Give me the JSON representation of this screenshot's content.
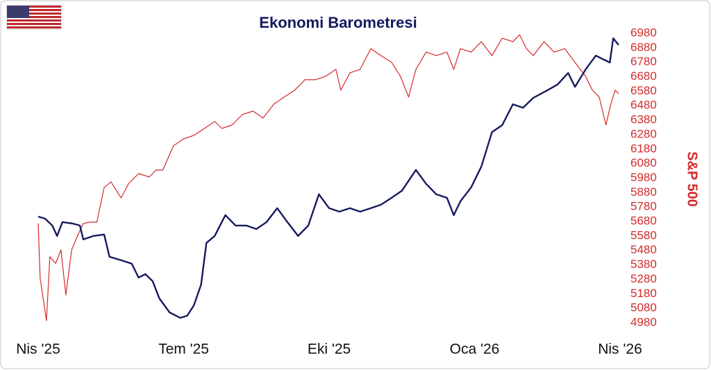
{
  "chart_data": {
    "type": "line",
    "title": "Ekonomi Barometresi",
    "y2label": "S&P 500",
    "xlim": [
      0,
      12
    ],
    "xticks": [
      {
        "value": 0,
        "label": "Nis '25"
      },
      {
        "value": 3,
        "label": "Tem '25"
      },
      {
        "value": 6,
        "label": "Eki '25"
      },
      {
        "value": 9,
        "label": "Oca '26"
      },
      {
        "value": 12,
        "label": "Nis '26"
      }
    ],
    "ylim": [
      0,
      100
    ],
    "y2lim": [
      4980,
      6980
    ],
    "y2ticks": [
      6980,
      6880,
      6780,
      6680,
      6580,
      6480,
      6380,
      6280,
      6180,
      6080,
      5980,
      5880,
      5780,
      5680,
      5580,
      5480,
      5380,
      5280,
      5180,
      5080,
      4980
    ],
    "series": [
      {
        "color": "#d42a2a",
        "axis": "y2",
        "x": [
          0,
          0.04,
          0.17,
          0.24,
          0.36,
          0.47,
          0.57,
          0.69,
          0.81,
          0.93,
          1.07,
          1.21,
          1.36,
          1.5,
          1.71,
          1.86,
          2.07,
          2.29,
          2.43,
          2.57,
          2.79,
          3,
          3.21,
          3.43,
          3.64,
          3.79,
          4,
          4.21,
          4.43,
          4.64,
          4.86,
          5.07,
          5.29,
          5.5,
          5.71,
          5.93,
          6.14,
          6.24,
          6.43,
          6.64,
          6.86,
          7.07,
          7.29,
          7.47,
          7.64,
          7.79,
          8,
          8.21,
          8.43,
          8.57,
          8.71,
          8.93,
          9.14,
          9.36,
          9.57,
          9.79,
          9.93,
          10.07,
          10.21,
          10.43,
          10.64,
          10.86,
          11.07,
          11.29,
          11.43,
          11.57,
          11.71,
          11.81,
          11.9,
          11.97
        ],
        "values": [
          5666,
          5290,
          4995,
          5436,
          5390,
          5484,
          5172,
          5484,
          5580,
          5666,
          5676,
          5676,
          5915,
          5954,
          5843,
          5939,
          6011,
          5987,
          6035,
          6035,
          6203,
          6251,
          6275,
          6323,
          6371,
          6323,
          6347,
          6419,
          6443,
          6395,
          6491,
          6539,
          6587,
          6659,
          6659,
          6683,
          6731,
          6587,
          6707,
          6731,
          6874,
          6826,
          6779,
          6683,
          6539,
          6731,
          6850,
          6826,
          6850,
          6731,
          6874,
          6850,
          6922,
          6826,
          6946,
          6922,
          6970,
          6874,
          6826,
          6922,
          6850,
          6874,
          6779,
          6683,
          6587,
          6539,
          6347,
          6491,
          6587,
          6563
        ]
      },
      {
        "color": "#141a5e",
        "axis": "y",
        "x": [
          0,
          0.14,
          0.29,
          0.39,
          0.5,
          0.71,
          0.86,
          0.93,
          1.14,
          1.36,
          1.47,
          1.71,
          1.93,
          2.07,
          2.21,
          2.36,
          2.5,
          2.71,
          2.93,
          3.07,
          3.21,
          3.36,
          3.47,
          3.64,
          3.86,
          4.07,
          4.29,
          4.5,
          4.71,
          4.93,
          5.14,
          5.36,
          5.57,
          5.79,
          6,
          6.21,
          6.43,
          6.64,
          6.86,
          7.07,
          7.29,
          7.5,
          7.79,
          8,
          8.21,
          8.43,
          8.57,
          8.71,
          8.93,
          9.14,
          9.36,
          9.57,
          9.79,
          10,
          10.21,
          10.5,
          10.71,
          10.93,
          11.07,
          11.29,
          11.5,
          11.64,
          11.79,
          11.86,
          11.97
        ],
        "values": [
          36.7,
          36.0,
          33.6,
          30.0,
          34.8,
          34.3,
          33.6,
          28.8,
          30.0,
          30.5,
          22.8,
          21.6,
          20.4,
          15.6,
          16.8,
          14.4,
          8.4,
          3.6,
          1.7,
          2.4,
          6.0,
          13.2,
          27.6,
          30.0,
          37.2,
          33.6,
          33.6,
          32.4,
          34.8,
          39.6,
          34.8,
          30.0,
          33.6,
          44.4,
          39.6,
          38.4,
          39.6,
          38.4,
          39.6,
          40.8,
          43.2,
          45.6,
          52.8,
          48.0,
          44.4,
          43.2,
          37.2,
          42.0,
          46.8,
          54.0,
          65.9,
          68.3,
          75.5,
          74.3,
          77.7,
          80.3,
          82.3,
          86.3,
          81.5,
          87.5,
          92.3,
          91.1,
          89.9,
          98.3,
          96.0
        ]
      }
    ]
  }
}
